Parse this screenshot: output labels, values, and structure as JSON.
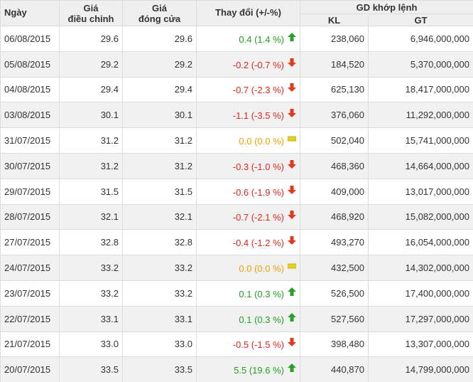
{
  "table": {
    "header": {
      "date": "Ngày",
      "adjusted": "Giá\nđiều chỉnh",
      "close": "Giá\nđóng cửa",
      "change": "Thay đổi (+/-%)",
      "matched": "GD khớp lệnh",
      "volume": "KL",
      "value": "GT"
    },
    "rows": [
      [
        "06/08/2015",
        "29.6",
        "29.6",
        "0.4 (1.4 %)",
        "238,060",
        "6,946,000,000"
      ],
      [
        "05/08/2015",
        "29.2",
        "29.2",
        "-0.2 (-0.7 %)",
        "184,520",
        "5,370,000,000"
      ],
      [
        "04/08/2015",
        "29.4",
        "29.4",
        "-0.7 (-2.3 %)",
        "625,130",
        "18,417,000,000"
      ],
      [
        "03/08/2015",
        "30.1",
        "30.1",
        "-1.1 (-3.5 %)",
        "376,060",
        "11,292,000,000"
      ],
      [
        "31/07/2015",
        "31.2",
        "31.2",
        "0.0 (0.0 %)",
        "502,040",
        "15,741,000,000"
      ],
      [
        "30/07/2015",
        "31.2",
        "31.2",
        "-0.3 (-1.0 %)",
        "468,360",
        "14,664,000,000"
      ],
      [
        "29/07/2015",
        "31.5",
        "31.5",
        "-0.6 (-1.9 %)",
        "409,000",
        "13,017,000,000"
      ],
      [
        "28/07/2015",
        "32.1",
        "32.1",
        "-0.7 (-2.1 %)",
        "468,920",
        "15,082,000,000"
      ],
      [
        "27/07/2015",
        "32.8",
        "32.8",
        "-0.4 (-1.2 %)",
        "493,270",
        "16,054,000,000"
      ],
      [
        "24/07/2015",
        "33.2",
        "33.2",
        "0.0 (0.0 %)",
        "432,500",
        "14,302,000,000"
      ],
      [
        "23/07/2015",
        "33.2",
        "33.2",
        "0.1 (0.3 %)",
        "526,500",
        "17,400,000,000"
      ],
      [
        "22/07/2015",
        "33.1",
        "33.1",
        "0.1 (0.3 %)",
        "527,560",
        "17,297,000,000"
      ],
      [
        "21/07/2015",
        "33.0",
        "33.0",
        "-0.5 (-1.5 %)",
        "398,480",
        "13,307,000,000"
      ],
      [
        "20/07/2015",
        "33.5",
        "33.5",
        "5.5 (19.6 %)",
        "440,870",
        "14,799,000,000"
      ]
    ]
  }
}
